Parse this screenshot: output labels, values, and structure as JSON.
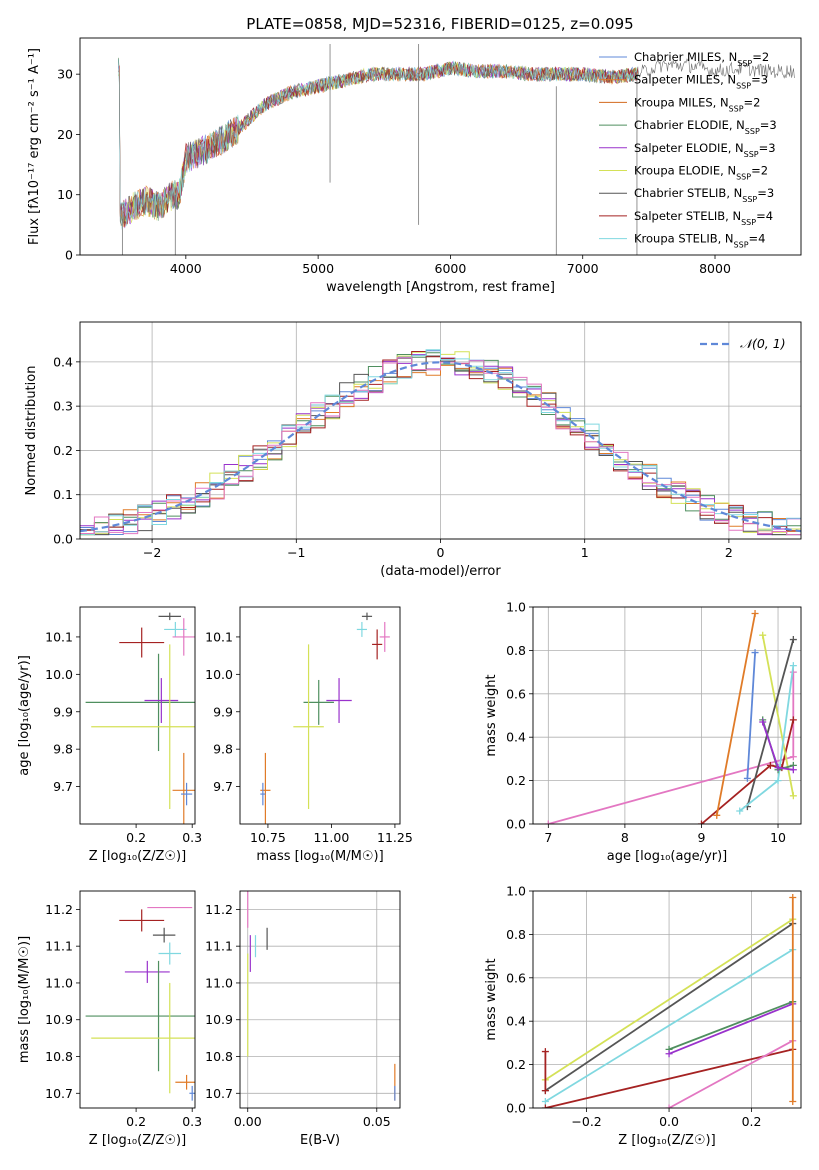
{
  "title": "PLATE=0858, MJD=52316, FIBERID=0125, z=0.095",
  "colors": {
    "chabrier_miles": "#5f88d8",
    "salpeter_miles": "#e07b28",
    "kroupa_miles": "#d2691e",
    "chabrier_elodie": "#4f8f5f",
    "salpeter_elodie": "#9932cc",
    "kroupa_elodie": "#d4e157",
    "chabrier_stelib": "#555555",
    "salpeter_stelib": "#a52222",
    "kroupa_stelib": "#80d8e0",
    "pink": "#e377c2",
    "gaussian": "#5f88d8"
  },
  "chart_data": [
    {
      "id": "spectrum",
      "type": "line",
      "xlabel": "wavelength [Angstrom, rest frame]",
      "ylabel": "Flux [fλ10⁻¹⁷ erg cm⁻² s⁻¹ A⁻¹]",
      "xlim": [
        3200,
        8650
      ],
      "ylim": [
        0,
        36
      ],
      "xticks": [
        4000,
        5000,
        6000,
        7000,
        8000
      ],
      "yticks": [
        0,
        10,
        20,
        30
      ],
      "grid": false,
      "legend_position": "right",
      "legend": [
        {
          "label": "Chabrier MILES, N_SSP=2",
          "color": "#5f88d8"
        },
        {
          "label": "Salpeter MILES, N_SSP=3",
          "color": "#e07b28"
        },
        {
          "label": "Kroupa MILES, N_SSP=2",
          "color": "#d2691e"
        },
        {
          "label": "Chabrier ELODIE, N_SSP=3",
          "color": "#4f8f5f"
        },
        {
          "label": "Salpeter ELODIE, N_SSP=3",
          "color": "#9932cc"
        },
        {
          "label": "Kroupa ELODIE, N_SSP=2",
          "color": "#d4e157"
        },
        {
          "label": "Chabrier STELIB, N_SSP=3",
          "color": "#555555"
        },
        {
          "label": "Salpeter STELIB, N_SSP=4",
          "color": "#a52222"
        },
        {
          "label": "Kroupa STELIB, N_SSP=4",
          "color": "#80d8e0"
        }
      ],
      "continuum": {
        "x": [
          3500,
          3600,
          3700,
          3800,
          3900,
          3950,
          4000,
          4200,
          4400,
          4600,
          4800,
          5000,
          5200,
          5400,
          5600,
          5800,
          6000,
          6200,
          6400,
          6600,
          6800,
          7000,
          7200,
          7400,
          7600,
          7800,
          8000,
          8200,
          8400,
          8600
        ],
        "y": [
          6,
          8,
          9,
          8,
          10,
          10,
          16,
          18,
          21,
          25,
          27,
          28,
          29,
          30,
          30,
          30,
          31,
          30.5,
          30.5,
          30,
          30,
          30,
          29.5,
          30,
          31.5,
          31.5,
          30.5,
          31,
          30.5,
          30.5
        ]
      },
      "spikes": [
        {
          "x": 5090,
          "y": [
            12,
            35
          ]
        },
        {
          "x": 5760,
          "y": [
            5,
            35
          ]
        },
        {
          "x": 6800,
          "y": [
            0,
            28
          ]
        },
        {
          "x": 7410,
          "y": [
            0,
            30
          ]
        },
        {
          "x": 3920,
          "y": [
            0,
            10
          ]
        },
        {
          "x": 3520,
          "y": [
            0,
            6
          ]
        }
      ]
    },
    {
      "id": "residuals",
      "type": "histogram",
      "xlabel": "(data-model)/error",
      "ylabel": "Normed distribution",
      "xlim": [
        -2.5,
        2.5
      ],
      "ylim": [
        0,
        0.49
      ],
      "xticks": [
        -2,
        -1,
        0,
        1,
        2
      ],
      "yticks": [
        0,
        0.1,
        0.2,
        0.3,
        0.4
      ],
      "grid": true,
      "bin_width": 0.1,
      "legend": [
        {
          "label": "𝒩(0, 1)",
          "style": "dashed",
          "color": "#5f88d8"
        }
      ],
      "gaussian": {
        "mean": 0,
        "sigma": 1
      }
    },
    {
      "id": "age_vs_Z",
      "type": "errorbar",
      "xlabel": "Z [log₁₀(Z/Z☉)]",
      "ylabel": "age  [log₁₀(age/yr)]",
      "xlim": [
        0.1,
        0.305
      ],
      "ylim": [
        9.6,
        10.18
      ],
      "xticks": [
        0.2,
        0.3
      ],
      "yticks": [
        9.7,
        9.8,
        9.9,
        10.0,
        10.1
      ],
      "grid": false,
      "points": [
        {
          "x": 0.26,
          "xerr": 0.02,
          "y": 10.155,
          "yerr": 0.01,
          "color": "#555555"
        },
        {
          "x": 0.27,
          "xerr": 0.02,
          "y": 10.12,
          "yerr": 0.02,
          "color": "#80d8e0"
        },
        {
          "x": 0.21,
          "xerr": 0.04,
          "y": 10.085,
          "yerr": 0.04,
          "color": "#a52222"
        },
        {
          "x": 0.285,
          "xerr": 0.02,
          "y": 10.1,
          "yerr": 0.05,
          "color": "#e377c2"
        },
        {
          "x": 0.24,
          "xerr": 0.13,
          "y": 9.925,
          "yerr": 0.13,
          "color": "#4f8f5f"
        },
        {
          "x": 0.245,
          "xerr": 0.03,
          "y": 9.93,
          "yerr": 0.06,
          "color": "#9932cc"
        },
        {
          "x": 0.26,
          "xerr": 0.14,
          "y": 9.86,
          "yerr": 0.22,
          "color": "#d4e157"
        },
        {
          "x": 0.285,
          "xerr": 0.02,
          "y": 9.69,
          "yerr": 0.1,
          "color": "#e07b28"
        },
        {
          "x": 0.29,
          "xerr": 0.01,
          "y": 9.68,
          "yerr": 0.03,
          "color": "#5f88d8"
        }
      ]
    },
    {
      "id": "age_vs_mass",
      "type": "errorbar",
      "xlabel": "mass [log₁₀(M/M☉)]",
      "ylabel": "",
      "xlim": [
        10.64,
        11.27
      ],
      "ylim": [
        9.6,
        10.18
      ],
      "xticks": [
        10.75,
        11.0,
        11.25
      ],
      "yticks": [
        9.7,
        9.8,
        9.9,
        10.0,
        10.1
      ],
      "grid": false,
      "points": [
        {
          "x": 11.14,
          "xerr": 0.02,
          "y": 10.155,
          "yerr": 0.01,
          "color": "#555555"
        },
        {
          "x": 11.12,
          "xerr": 0.02,
          "y": 10.12,
          "yerr": 0.02,
          "color": "#80d8e0"
        },
        {
          "x": 11.18,
          "xerr": 0.02,
          "y": 10.08,
          "yerr": 0.04,
          "color": "#a52222"
        },
        {
          "x": 11.21,
          "xerr": 0.02,
          "y": 10.1,
          "yerr": 0.04,
          "color": "#e377c2"
        },
        {
          "x": 10.95,
          "xerr": 0.06,
          "y": 9.925,
          "yerr": 0.06,
          "color": "#4f8f5f"
        },
        {
          "x": 11.03,
          "xerr": 0.05,
          "y": 9.93,
          "yerr": 0.06,
          "color": "#9932cc"
        },
        {
          "x": 10.91,
          "xerr": 0.06,
          "y": 9.86,
          "yerr": 0.22,
          "color": "#d4e157"
        },
        {
          "x": 10.74,
          "xerr": 0.02,
          "y": 9.69,
          "yerr": 0.1,
          "color": "#e07b28"
        },
        {
          "x": 10.73,
          "xerr": 0.01,
          "y": 9.68,
          "yerr": 0.03,
          "color": "#5f88d8"
        }
      ]
    },
    {
      "id": "weight_vs_age",
      "type": "line",
      "xlabel": "age  [log₁₀(age/yr)]",
      "ylabel": "mass weight",
      "xlim": [
        6.8,
        10.3
      ],
      "ylim": [
        0,
        1
      ],
      "xticks": [
        7,
        8,
        9,
        10
      ],
      "yticks": [
        0,
        0.2,
        0.4,
        0.6,
        0.8,
        1.0
      ],
      "grid": true,
      "series": [
        {
          "color": "#e377c2",
          "x": [
            7.0,
            10.2,
            10.2
          ],
          "y": [
            0.0,
            0.31,
            0.7
          ]
        },
        {
          "color": "#a52222",
          "x": [
            9.0,
            9.9,
            10.05,
            10.2
          ],
          "y": [
            0.0,
            0.27,
            0.26,
            0.48
          ]
        },
        {
          "color": "#e07b28",
          "x": [
            9.2,
            9.7
          ],
          "y": [
            0.04,
            0.97
          ]
        },
        {
          "color": "#5f88d8",
          "x": [
            9.6,
            9.7
          ],
          "y": [
            0.21,
            0.79
          ]
        },
        {
          "color": "#d4e157",
          "x": [
            9.8,
            10.2
          ],
          "y": [
            0.87,
            0.13
          ]
        },
        {
          "color": "#555555",
          "x": [
            9.6,
            10.2
          ],
          "y": [
            0.08,
            0.85
          ]
        },
        {
          "color": "#80d8e0",
          "x": [
            9.5,
            10.0,
            10.2
          ],
          "y": [
            0.06,
            0.2,
            0.73
          ]
        },
        {
          "color": "#4f8f5f",
          "x": [
            9.8,
            10.0,
            10.2
          ],
          "y": [
            0.48,
            0.25,
            0.27
          ]
        },
        {
          "color": "#9932cc",
          "x": [
            9.8,
            10.0,
            10.2
          ],
          "y": [
            0.47,
            0.26,
            0.25
          ]
        }
      ]
    },
    {
      "id": "mass_vs_Z",
      "type": "errorbar",
      "xlabel": "Z [log₁₀(Z/Z☉)]",
      "ylabel": "mass [log₁₀(M/M☉)]",
      "xlim": [
        0.1,
        0.305
      ],
      "ylim": [
        10.66,
        11.25
      ],
      "xticks": [
        0.2,
        0.3
      ],
      "yticks": [
        10.7,
        10.8,
        10.9,
        11.0,
        11.1,
        11.2
      ],
      "grid": false,
      "points": [
        {
          "x": 0.26,
          "xerr": 0.04,
          "y": 11.205,
          "yerr": 0.0,
          "color": "#e377c2"
        },
        {
          "x": 0.21,
          "xerr": 0.04,
          "y": 11.17,
          "yerr": 0.03,
          "color": "#a52222"
        },
        {
          "x": 0.25,
          "xerr": 0.02,
          "y": 11.13,
          "yerr": 0.02,
          "color": "#555555"
        },
        {
          "x": 0.26,
          "xerr": 0.02,
          "y": 11.08,
          "yerr": 0.03,
          "color": "#80d8e0"
        },
        {
          "x": 0.22,
          "xerr": 0.04,
          "y": 11.03,
          "yerr": 0.03,
          "color": "#9932cc"
        },
        {
          "x": 0.24,
          "xerr": 0.13,
          "y": 10.91,
          "yerr": 0.15,
          "color": "#4f8f5f"
        },
        {
          "x": 0.26,
          "xerr": 0.14,
          "y": 10.85,
          "yerr": 0.15,
          "color": "#d4e157"
        },
        {
          "x": 0.29,
          "xerr": 0.02,
          "y": 10.73,
          "yerr": 0.02,
          "color": "#e07b28"
        },
        {
          "x": 0.3,
          "xerr": 0.005,
          "y": 10.7,
          "yerr": 0.02,
          "color": "#5f88d8"
        }
      ]
    },
    {
      "id": "mass_vs_ebv",
      "type": "errorbar",
      "xlabel": "E(B-V)",
      "ylabel": "",
      "xlim": [
        -0.003,
        0.059
      ],
      "ylim": [
        10.66,
        11.25
      ],
      "xticks": [
        0.0,
        0.05
      ],
      "yticks": [
        10.7,
        10.8,
        10.9,
        11.0,
        11.1,
        11.2
      ],
      "grid": true,
      "points": [
        {
          "x": 0.0,
          "xerr": 0.0,
          "y": 11.2,
          "yerr": 0.05,
          "color": "#e377c2"
        },
        {
          "x": 0.001,
          "xerr": 0.0,
          "y": 11.08,
          "yerr": 0.05,
          "color": "#9932cc"
        },
        {
          "x": 0.0075,
          "xerr": 0.0,
          "y": 11.12,
          "yerr": 0.03,
          "color": "#555555"
        },
        {
          "x": 0.003,
          "xerr": 0.0,
          "y": 11.1,
          "yerr": 0.03,
          "color": "#80d8e0"
        },
        {
          "x": 0.0,
          "xerr": 0.0,
          "y": 10.94,
          "yerr": 0.14,
          "color": "#d4e157"
        },
        {
          "x": 0.057,
          "xerr": 0.0,
          "y": 10.73,
          "yerr": 0.05,
          "color": "#e07b28"
        },
        {
          "x": 0.057,
          "xerr": 0.0,
          "y": 10.7,
          "yerr": 0.02,
          "color": "#5f88d8"
        }
      ]
    },
    {
      "id": "weight_vs_Z",
      "type": "line",
      "xlabel": "Z [log₁₀(Z/Z☉)]",
      "ylabel": "mass weight",
      "xlim": [
        -0.33,
        0.32
      ],
      "ylim": [
        0,
        1
      ],
      "xticks": [
        -0.2,
        0.0,
        0.2
      ],
      "yticks": [
        0,
        0.2,
        0.4,
        0.6,
        0.8,
        1.0
      ],
      "grid": true,
      "series": [
        {
          "color": "#d4e157",
          "x": [
            -0.3,
            0.3
          ],
          "y": [
            0.13,
            0.87
          ]
        },
        {
          "color": "#555555",
          "x": [
            -0.3,
            0.3
          ],
          "y": [
            0.08,
            0.85
          ]
        },
        {
          "color": "#80d8e0",
          "x": [
            -0.3,
            0.3
          ],
          "y": [
            0.03,
            0.73
          ]
        },
        {
          "color": "#4f8f5f",
          "x": [
            0.0,
            0.3
          ],
          "y": [
            0.27,
            0.49
          ]
        },
        {
          "color": "#9932cc",
          "x": [
            0.0,
            0.3
          ],
          "y": [
            0.25,
            0.48
          ]
        },
        {
          "color": "#a52222",
          "x": [
            -0.3,
            0.3
          ],
          "y": [
            0.0,
            0.27
          ]
        },
        {
          "color": "#e377c2",
          "x": [
            0.0,
            0.3
          ],
          "y": [
            0.0,
            0.31
          ]
        },
        {
          "color": "#e07b28",
          "x": [
            0.3,
            0.3
          ],
          "y": [
            0.03,
            0.97
          ]
        },
        {
          "color": "#a52222",
          "x": [
            -0.3,
            -0.3
          ],
          "y": [
            0.08,
            0.26
          ]
        }
      ]
    }
  ]
}
